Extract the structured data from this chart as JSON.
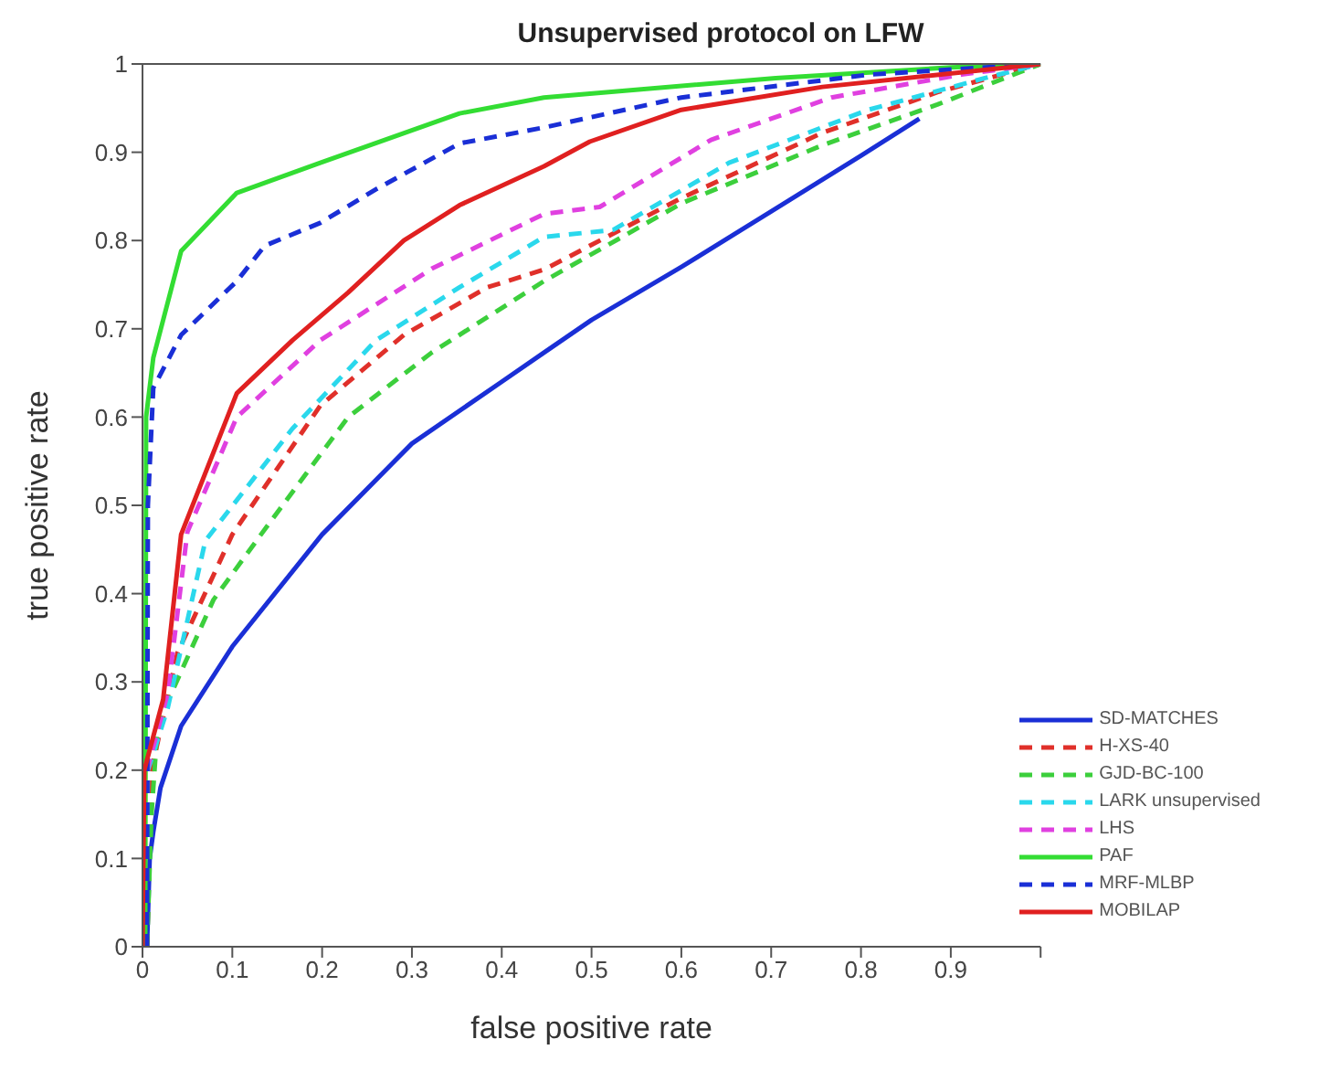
{
  "chart_data": {
    "type": "line",
    "title": "Unsupervised protocol on LFW",
    "xlabel": "false positive rate",
    "ylabel": "true positive rate",
    "xlim": [
      0,
      1
    ],
    "ylim": [
      0,
      1
    ],
    "xticks": [
      0,
      0.1,
      0.2,
      0.3,
      0.4,
      0.5,
      0.6,
      0.7,
      0.8,
      0.9,
      {
        "value": 1,
        "label": null
      }
    ],
    "yticks": [
      0,
      0.1,
      0.2,
      0.3,
      0.4,
      0.5,
      0.6,
      0.7,
      0.8,
      0.9,
      1
    ],
    "grid": false,
    "legend": "bottom right",
    "marker": "none",
    "series": [
      {
        "name": "SD-MATCHES",
        "color": "#1a2fd6",
        "line_style": "solid",
        "x": [
          0.005,
          0.008,
          0.012,
          0.02,
          0.043,
          0.1,
          0.2,
          0.3,
          0.4,
          0.447,
          0.5,
          0.6,
          0.7,
          0.8,
          0.865
        ],
        "values": [
          0,
          0.1,
          0.13,
          0.18,
          0.25,
          0.34,
          0.467,
          0.57,
          0.64,
          0.673,
          0.71,
          0.77,
          0.833,
          0.896,
          0.938
        ]
      },
      {
        "name": "H-XS-40",
        "color": "#e0302a",
        "line_style": "dashed",
        "x": [
          0.005,
          0.01,
          0.039,
          0.1,
          0.198,
          0.291,
          0.384,
          0.447,
          0.6,
          0.757,
          0.885,
          1
        ],
        "values": [
          0,
          0.2,
          0.333,
          0.467,
          0.613,
          0.693,
          0.747,
          0.767,
          0.848,
          0.922,
          0.968,
          1
        ]
      },
      {
        "name": "GJD-BC-100",
        "color": "#3ccf3c",
        "line_style": "dashed",
        "x": [
          0.005,
          0.01,
          0.017,
          0.079,
          0.132,
          0.229,
          0.322,
          0.447,
          0.6,
          0.757,
          0.885,
          1
        ],
        "values": [
          0,
          0.15,
          0.253,
          0.393,
          0.467,
          0.6,
          0.673,
          0.754,
          0.842,
          0.908,
          0.954,
          1
        ]
      },
      {
        "name": "LARK unsupervised",
        "color": "#2ad8ec",
        "line_style": "dashed",
        "x": [
          0.003,
          0.006,
          0.028,
          0.07,
          0.167,
          0.26,
          0.353,
          0.447,
          0.524,
          0.653,
          0.808,
          0.938,
          1
        ],
        "values": [
          0,
          0.2,
          0.27,
          0.46,
          0.587,
          0.687,
          0.747,
          0.804,
          0.812,
          0.888,
          0.948,
          0.984,
          1
        ]
      },
      {
        "name": "LHS",
        "color": "#e040e0",
        "line_style": "dashed",
        "x": [
          0.003,
          0.005,
          0.028,
          0.05,
          0.105,
          0.198,
          0.322,
          0.447,
          0.509,
          0.633,
          0.767,
          0.912,
          1
        ],
        "values": [
          0,
          0.2,
          0.287,
          0.47,
          0.6,
          0.687,
          0.768,
          0.83,
          0.838,
          0.914,
          0.962,
          0.988,
          1
        ]
      },
      {
        "name": "PAF",
        "color": "#33dd33",
        "line_style": "solid",
        "x": [
          0.003,
          0.004,
          0.012,
          0.043,
          0.105,
          0.198,
          0.353,
          0.447,
          0.705,
          0.9,
          1
        ],
        "values": [
          0,
          0.6,
          0.667,
          0.788,
          0.854,
          0.888,
          0.944,
          0.962,
          0.984,
          0.996,
          1
        ]
      },
      {
        "name": "MRF-MLBP",
        "color": "#1a2fd6",
        "line_style": "dashed",
        "x": [
          0.005,
          0.006,
          0.012,
          0.043,
          0.105,
          0.136,
          0.198,
          0.26,
          0.353,
          0.447,
          0.6,
          0.81,
          1
        ],
        "values": [
          0,
          0.5,
          0.633,
          0.693,
          0.754,
          0.794,
          0.82,
          0.858,
          0.91,
          0.928,
          0.962,
          0.988,
          1
        ]
      },
      {
        "name": "MOBILAP",
        "color": "#e02020",
        "line_style": "solid",
        "x": [
          0,
          0.002,
          0.023,
          0.043,
          0.105,
          0.167,
          0.229,
          0.291,
          0.353,
          0.447,
          0.498,
          0.6,
          0.757,
          1
        ],
        "values": [
          0,
          0.2,
          0.28,
          0.467,
          0.627,
          0.687,
          0.741,
          0.8,
          0.84,
          0.884,
          0.912,
          0.948,
          0.974,
          1
        ]
      }
    ]
  }
}
